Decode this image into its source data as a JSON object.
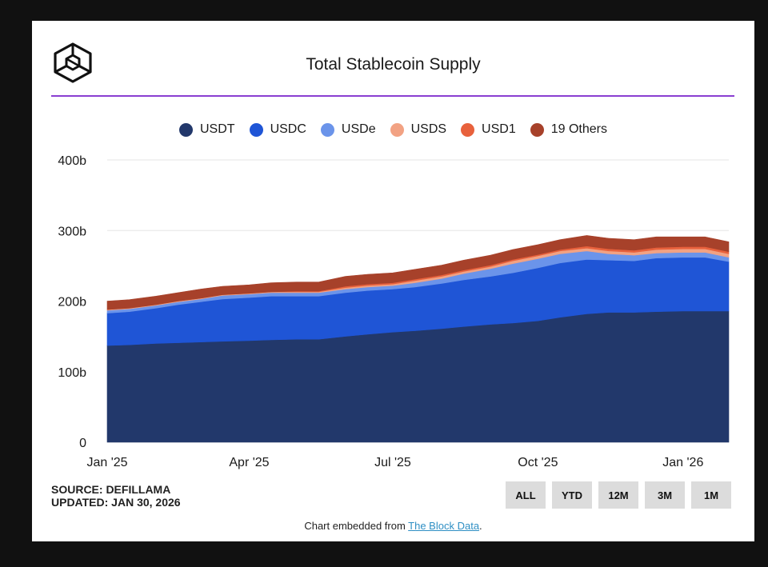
{
  "title": "Total Stablecoin Supply",
  "source_line": "SOURCE: DEFILLAMA",
  "updated_line": "UPDATED: JAN 30, 2026",
  "embed": {
    "prefix": "Chart embedded from ",
    "link": "The Block Data",
    "suffix": "."
  },
  "range_buttons": [
    "ALL",
    "YTD",
    "12M",
    "3M",
    "1M"
  ],
  "logo_icon": "cube-logo-icon",
  "chart_data": {
    "type": "area",
    "stacked": true,
    "title": "Total Stablecoin Supply",
    "xlabel": "",
    "ylabel": "",
    "ylim": [
      0,
      400
    ],
    "yticks": [
      0,
      100,
      200,
      300,
      400
    ],
    "ytick_labels": [
      "0",
      "100b",
      "200b",
      "300b",
      "400b"
    ],
    "xticks": [
      {
        "date": "2025-01-01",
        "label": "Jan '25"
      },
      {
        "date": "2025-04-01",
        "label": "Apr '25"
      },
      {
        "date": "2025-07-01",
        "label": "Jul '25"
      },
      {
        "date": "2025-10-01",
        "label": "Oct '25"
      },
      {
        "date": "2026-01-01",
        "label": "Jan '26"
      }
    ],
    "x_range": [
      "2025-01-01",
      "2026-01-30"
    ],
    "grid": true,
    "legend_position": "top-center",
    "x": [
      "2025-01-01",
      "2025-01-15",
      "2025-02-01",
      "2025-02-15",
      "2025-03-01",
      "2025-03-15",
      "2025-04-01",
      "2025-04-15",
      "2025-05-01",
      "2025-05-15",
      "2025-06-01",
      "2025-06-15",
      "2025-07-01",
      "2025-07-15",
      "2025-08-01",
      "2025-08-15",
      "2025-09-01",
      "2025-09-15",
      "2025-10-01",
      "2025-10-15",
      "2025-11-01",
      "2025-11-15",
      "2025-12-01",
      "2025-12-15",
      "2026-01-01",
      "2026-01-15",
      "2026-01-30"
    ],
    "series": [
      {
        "name": "USDT",
        "color": "#22386b",
        "values": [
          137,
          138,
          140,
          141,
          142,
          143,
          144,
          145,
          146,
          146,
          150,
          153,
          156,
          158,
          161,
          164,
          167,
          169,
          172,
          177,
          182,
          184,
          184,
          185,
          186,
          186,
          186
        ]
      },
      {
        "name": "USDC",
        "color": "#1f55d6",
        "values": [
          46,
          47,
          50,
          54,
          57,
          60,
          61,
          62,
          61,
          61,
          62,
          62,
          61,
          62,
          64,
          66,
          68,
          71,
          75,
          77,
          77,
          74,
          73,
          76,
          76,
          76,
          70
        ]
      },
      {
        "name": "USDe",
        "color": "#6b94ea",
        "values": [
          4,
          4,
          4,
          4,
          4,
          5,
          5,
          5,
          5,
          5,
          5,
          5,
          5,
          6,
          7,
          9,
          11,
          13,
          13,
          13,
          12,
          9,
          8,
          7,
          7,
          7,
          6
        ]
      },
      {
        "name": "USDS",
        "color": "#f2a283",
        "values": [
          1,
          1,
          1,
          1,
          1,
          1,
          1,
          1,
          1,
          1,
          2,
          2,
          2,
          3,
          3,
          3,
          3,
          4,
          4,
          4,
          4,
          4,
          4,
          5,
          5,
          5,
          5
        ]
      },
      {
        "name": "USD1",
        "color": "#e8613c",
        "values": [
          0,
          0,
          0,
          0,
          0,
          0,
          0,
          0,
          1,
          1,
          2,
          2,
          2,
          2,
          2,
          2,
          2,
          2,
          2,
          2,
          3,
          3,
          3,
          3,
          3,
          3,
          3
        ]
      },
      {
        "name": "19 Others",
        "color": "#a7412a",
        "values": [
          12,
          12,
          12,
          12,
          13,
          12,
          12,
          13,
          13,
          13,
          14,
          14,
          14,
          14,
          14,
          14,
          14,
          14,
          14,
          14,
          15,
          15,
          15,
          15,
          14,
          14,
          14
        ]
      }
    ]
  }
}
